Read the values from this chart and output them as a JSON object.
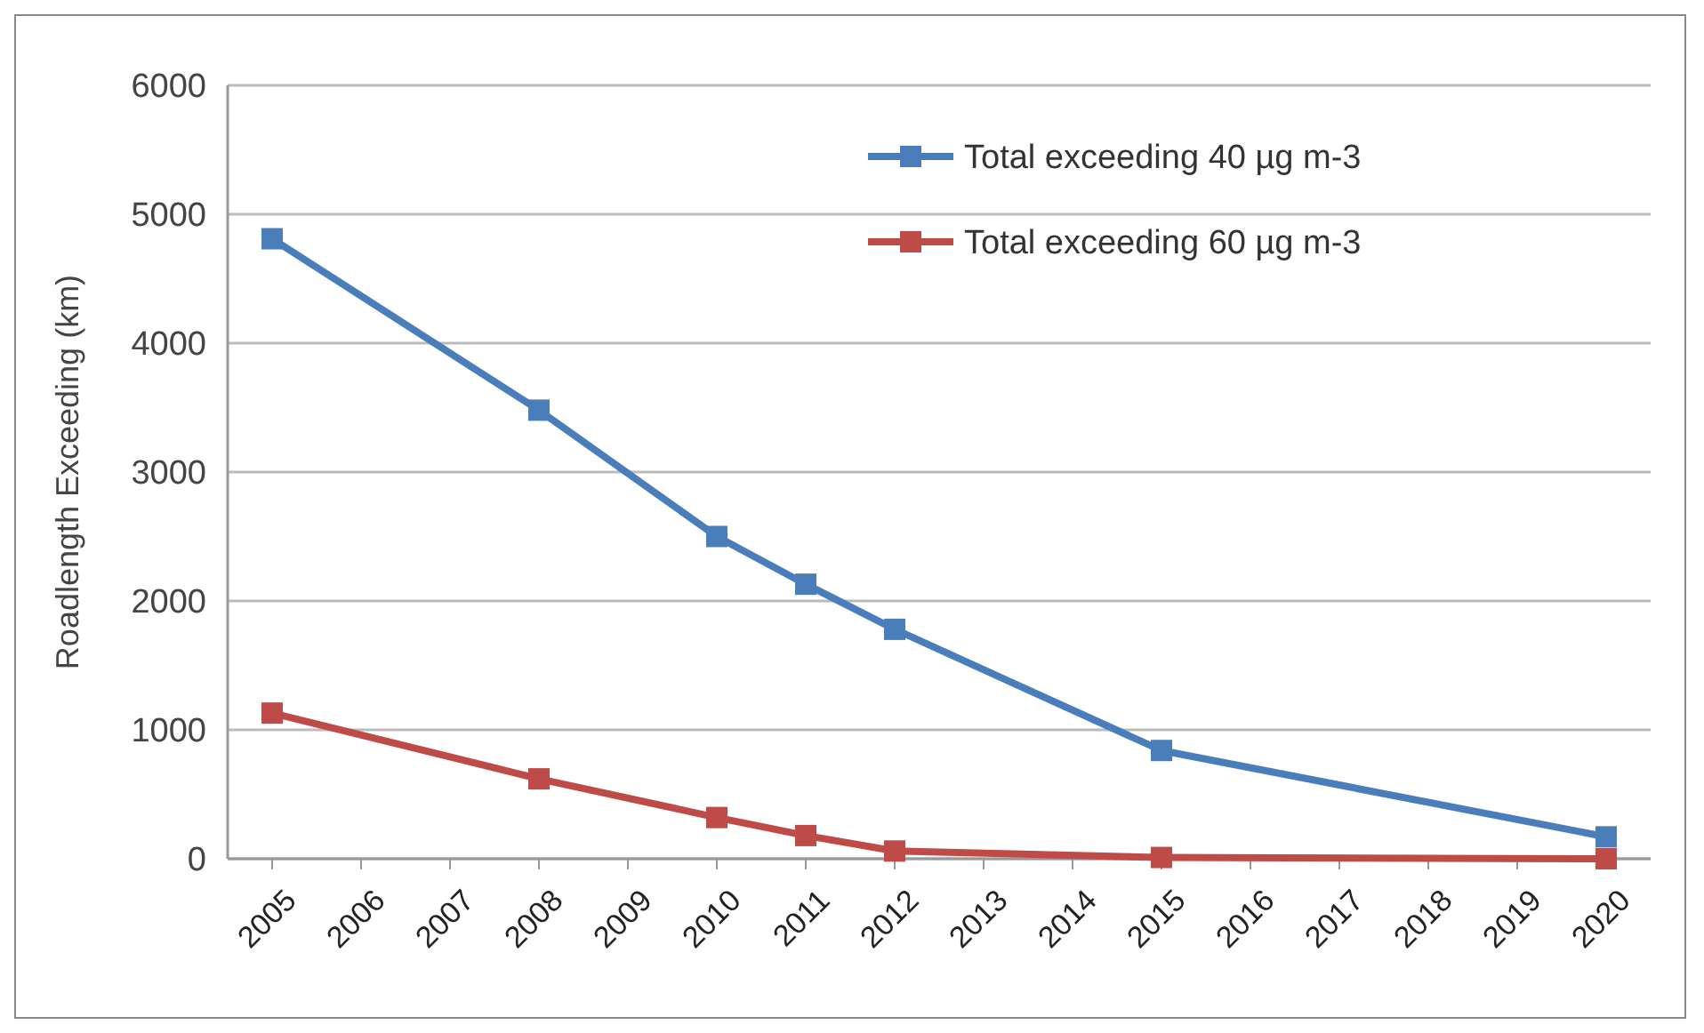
{
  "chart_data": {
    "type": "line",
    "ylabel": "Roadlength Exceeding (km)",
    "x": [
      2005,
      2008,
      2010,
      2011,
      2012,
      2015,
      2020
    ],
    "xlim": [
      2004.5,
      2020.5
    ],
    "xticks": [
      2005,
      2006,
      2007,
      2008,
      2009,
      2010,
      2011,
      2012,
      2013,
      2014,
      2015,
      2016,
      2017,
      2018,
      2019,
      2020
    ],
    "ylim": [
      0,
      6000
    ],
    "yticks": [
      0,
      1000,
      2000,
      3000,
      4000,
      5000,
      6000
    ],
    "grid": "y",
    "legend": "top right",
    "marker": "square",
    "line_style": "solid",
    "series": [
      {
        "name": "Total exceeding 40 µg m-3",
        "color": "#4a7ebb",
        "values": [
          4810,
          3480,
          2500,
          2130,
          1780,
          840,
          170
        ]
      },
      {
        "name": "Total exceeding 60 µg m-3",
        "color": "#be4b48",
        "values": [
          1130,
          620,
          320,
          180,
          60,
          10,
          0
        ]
      }
    ]
  }
}
